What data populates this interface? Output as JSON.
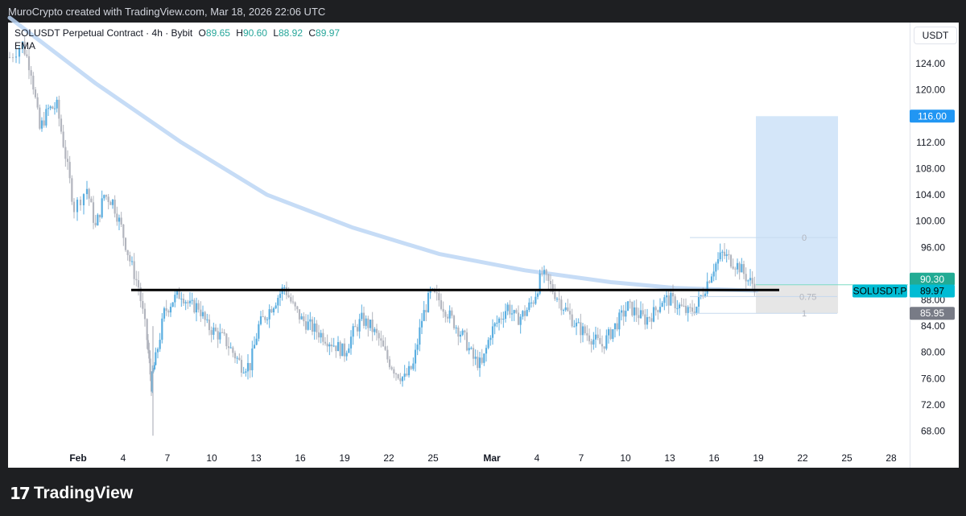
{
  "header": {
    "credit": "MuroCrypto created with TradingView.com, Mar 18, 2026 22:06 UTC"
  },
  "legend": {
    "symbol": "SOLUSDT Perpetual Contract · 4h · Bybit",
    "o_label": "O",
    "o": "89.65",
    "h_label": "H",
    "h": "90.60",
    "l_label": "L",
    "l": "88.92",
    "c_label": "C",
    "c": "89.97",
    "indicator": "EMA"
  },
  "currency": "USDT",
  "brand": "TradingView",
  "colors": {
    "up": "#5aaee0",
    "down": "#b2b5be",
    "ema": "#bcd6f5",
    "target_zone": "#cfe3f8",
    "stop_zone": "#e0e0e0"
  },
  "chart_data": {
    "type": "candlestick",
    "y_axis": {
      "ticks": [
        68,
        72,
        76,
        80,
        84,
        88,
        92,
        96,
        100,
        104,
        108,
        112,
        116,
        120,
        124
      ],
      "tick_labels": [
        "68.00",
        "72.00",
        "76.00",
        "80.00",
        "84.00",
        "88.00",
        "",
        "96.00",
        "100.00",
        "104.00",
        "108.00",
        "112.00",
        "",
        "120.00",
        "124.00"
      ]
    },
    "x_axis": {
      "tick_labels": [
        "Feb",
        "4",
        "7",
        "10",
        "13",
        "16",
        "19",
        "22",
        "25",
        "Mar",
        "4",
        "7",
        "10",
        "13",
        "16",
        "19",
        "22",
        "25",
        "28"
      ]
    },
    "price_close_path": [
      {
        "t": 0,
        "p": 125
      },
      {
        "t": 3,
        "p": 127
      },
      {
        "t": 5,
        "p": 123
      },
      {
        "t": 7,
        "p": 114
      },
      {
        "t": 9,
        "p": 117
      },
      {
        "t": 11,
        "p": 117.5
      },
      {
        "t": 13,
        "p": 110
      },
      {
        "t": 15,
        "p": 102
      },
      {
        "t": 18,
        "p": 105
      },
      {
        "t": 20,
        "p": 99
      },
      {
        "t": 22,
        "p": 104
      },
      {
        "t": 24,
        "p": 103
      },
      {
        "t": 26,
        "p": 99
      },
      {
        "t": 28,
        "p": 94
      },
      {
        "t": 30,
        "p": 90
      },
      {
        "t": 32,
        "p": 82
      },
      {
        "t": 33,
        "p": 75
      },
      {
        "t": 34,
        "p": 79
      },
      {
        "t": 36,
        "p": 86
      },
      {
        "t": 38,
        "p": 88
      },
      {
        "t": 40,
        "p": 89
      },
      {
        "t": 42,
        "p": 87
      },
      {
        "t": 44,
        "p": 87
      },
      {
        "t": 46,
        "p": 84
      },
      {
        "t": 48,
        "p": 83
      },
      {
        "t": 50,
        "p": 82
      },
      {
        "t": 52,
        "p": 80
      },
      {
        "t": 54,
        "p": 78
      },
      {
        "t": 56,
        "p": 78
      },
      {
        "t": 58,
        "p": 84
      },
      {
        "t": 60,
        "p": 86
      },
      {
        "t": 62,
        "p": 88
      },
      {
        "t": 64,
        "p": 90
      },
      {
        "t": 66,
        "p": 87
      },
      {
        "t": 68,
        "p": 85
      },
      {
        "t": 70,
        "p": 84
      },
      {
        "t": 72,
        "p": 83
      },
      {
        "t": 74,
        "p": 82
      },
      {
        "t": 76,
        "p": 81
      },
      {
        "t": 78,
        "p": 80
      },
      {
        "t": 80,
        "p": 83
      },
      {
        "t": 82,
        "p": 85
      },
      {
        "t": 84,
        "p": 84
      },
      {
        "t": 86,
        "p": 82
      },
      {
        "t": 88,
        "p": 79
      },
      {
        "t": 90,
        "p": 77
      },
      {
        "t": 92,
        "p": 76
      },
      {
        "t": 94,
        "p": 78
      },
      {
        "t": 96,
        "p": 85
      },
      {
        "t": 98,
        "p": 89
      },
      {
        "t": 100,
        "p": 88
      },
      {
        "t": 102,
        "p": 86
      },
      {
        "t": 104,
        "p": 84
      },
      {
        "t": 106,
        "p": 82
      },
      {
        "t": 108,
        "p": 79
      },
      {
        "t": 110,
        "p": 78
      },
      {
        "t": 112,
        "p": 83
      },
      {
        "t": 114,
        "p": 85
      },
      {
        "t": 116,
        "p": 87
      },
      {
        "t": 118,
        "p": 85
      },
      {
        "t": 120,
        "p": 86
      },
      {
        "t": 122,
        "p": 88
      },
      {
        "t": 124,
        "p": 92
      },
      {
        "t": 126,
        "p": 90
      },
      {
        "t": 128,
        "p": 88
      },
      {
        "t": 130,
        "p": 86
      },
      {
        "t": 132,
        "p": 84
      },
      {
        "t": 134,
        "p": 83
      },
      {
        "t": 136,
        "p": 82
      },
      {
        "t": 138,
        "p": 81
      },
      {
        "t": 140,
        "p": 83
      },
      {
        "t": 142,
        "p": 85
      },
      {
        "t": 144,
        "p": 87
      },
      {
        "t": 146,
        "p": 86
      },
      {
        "t": 148,
        "p": 85
      },
      {
        "t": 150,
        "p": 86
      },
      {
        "t": 152,
        "p": 88
      },
      {
        "t": 154,
        "p": 88
      },
      {
        "t": 156,
        "p": 87
      },
      {
        "t": 158,
        "p": 86
      },
      {
        "t": 160,
        "p": 87
      },
      {
        "t": 162,
        "p": 90
      },
      {
        "t": 164,
        "p": 93
      },
      {
        "t": 166,
        "p": 95
      },
      {
        "t": 168,
        "p": 94
      },
      {
        "t": 170,
        "p": 93
      },
      {
        "t": 172,
        "p": 91
      },
      {
        "t": 174,
        "p": 89.97
      }
    ],
    "ema_path": [
      {
        "t": 0,
        "p": 131
      },
      {
        "t": 20,
        "p": 121
      },
      {
        "t": 40,
        "p": 112
      },
      {
        "t": 60,
        "p": 104
      },
      {
        "t": 80,
        "p": 99
      },
      {
        "t": 100,
        "p": 95
      },
      {
        "t": 120,
        "p": 92.5
      },
      {
        "t": 140,
        "p": 90.7
      },
      {
        "t": 155,
        "p": 89.8
      },
      {
        "t": 174,
        "p": 89.4
      }
    ],
    "support_level": 89.5,
    "fib_labels": [
      {
        "label": "0",
        "price": 97.5
      },
      {
        "label": "0.75",
        "price": 88.5
      },
      {
        "label": "1",
        "price": 85.95
      }
    ],
    "position": {
      "entry": 90.3,
      "target": 116.0,
      "stop": 85.95
    },
    "price_labels": {
      "target": "116.00",
      "entry": "90.30",
      "last_symbol": "SOLUSDT.P",
      "last": "89.97",
      "stop": "85.95"
    }
  }
}
